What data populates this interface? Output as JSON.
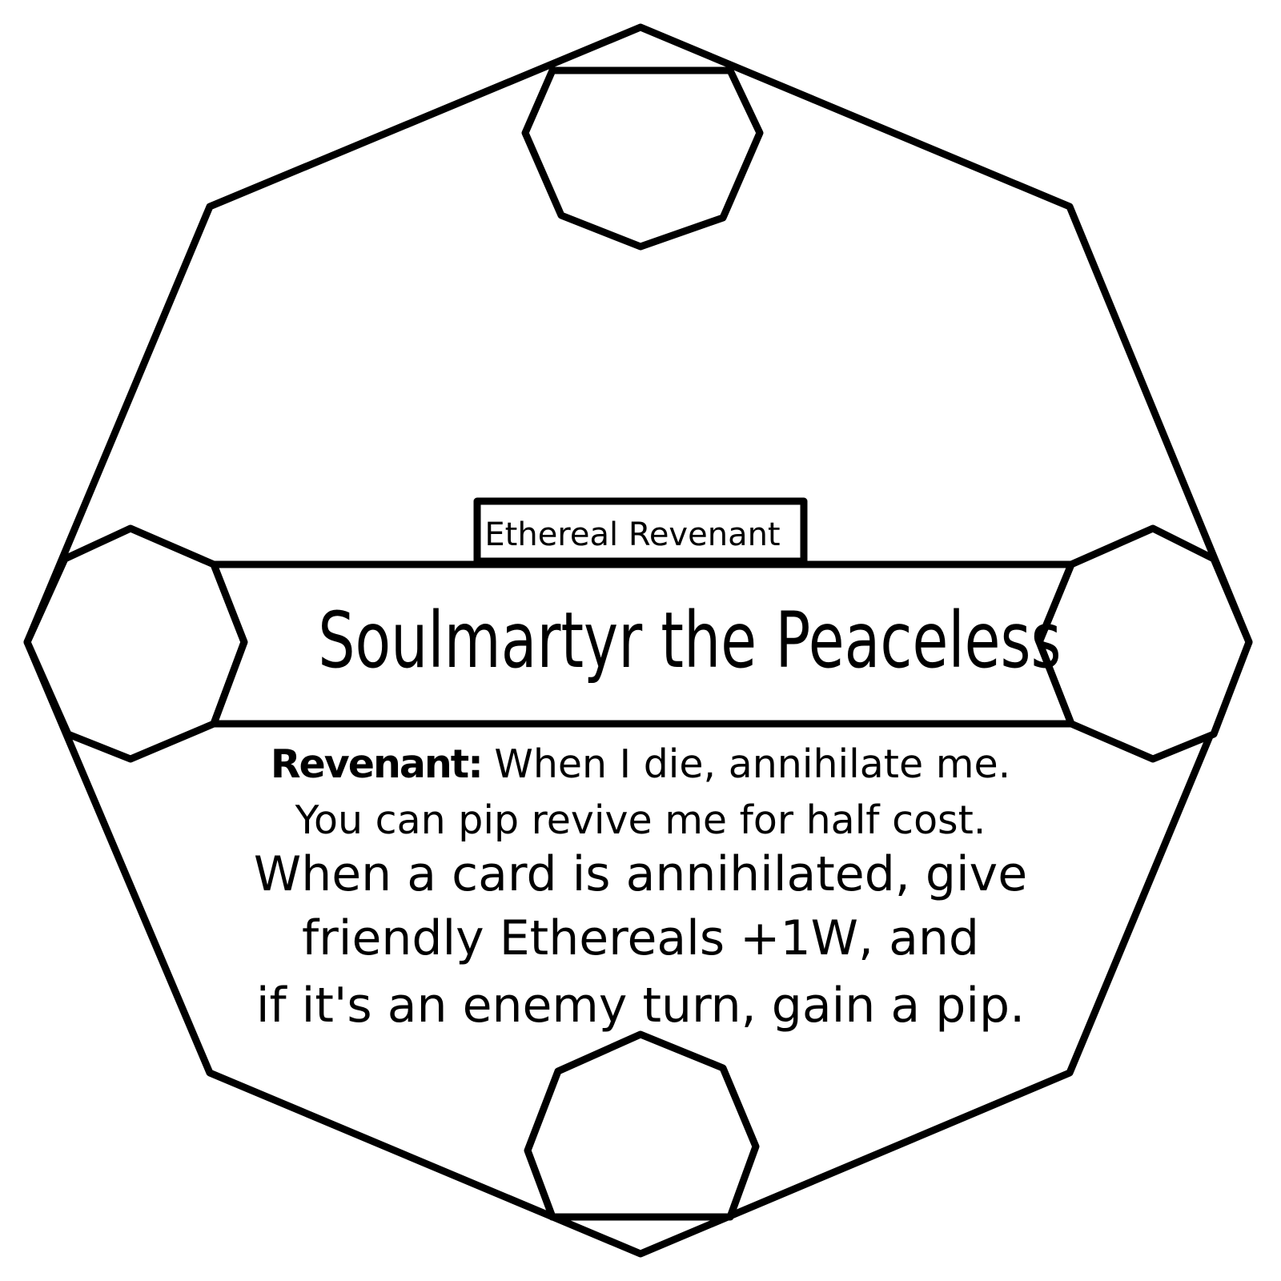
{
  "card": {
    "type_label": "Ethereal Revenant",
    "name": "Soulmartyr the Peaceless",
    "ability": {
      "keyword": "Revenant:",
      "line1_rest": " When I die, annihilate me.",
      "line2": "You can pip revive me for half cost."
    },
    "effect": {
      "line1": "When a card is annihilated, give",
      "line2": "friendly Ethereals +1W, and",
      "line3": "if it's an enemy turn, gain a pip."
    }
  },
  "colors": {
    "stroke": "#000000",
    "background": "#ffffff"
  }
}
